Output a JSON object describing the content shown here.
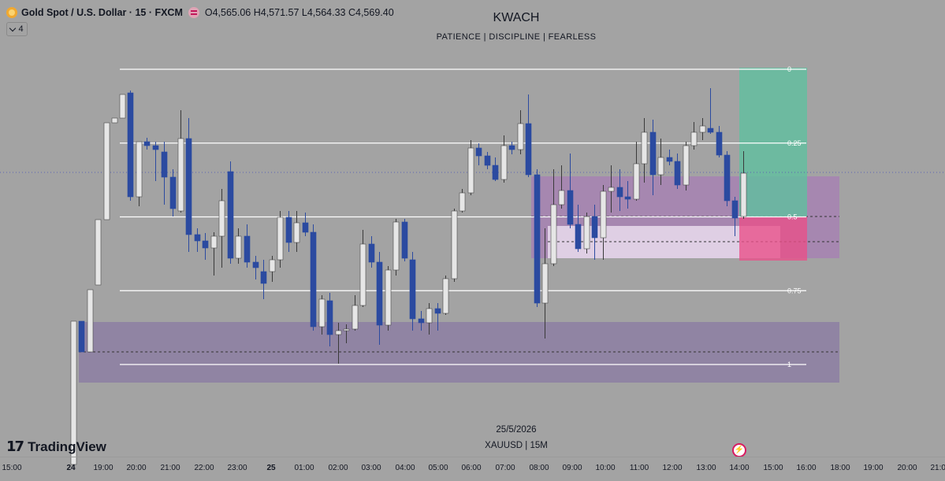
{
  "header": {
    "symbol": "Gold Spot / U.S. Dollar · 15 · FXCM",
    "ohlc": "O4,565.06 H4,571.57 L4,564.33 C4,569.40",
    "indicator_count": "4"
  },
  "chart_title": "KWACH",
  "chart_subtitle": "PATIENCE  |  DISCIPLINE  |  FEARLESS",
  "watermark": {
    "date": "25/5/2026",
    "symbol": "XAUUSD | 15M"
  },
  "brand": "TradingView",
  "colors": {
    "background": "#a3a3a3",
    "bull_candle": "#e6e6e6",
    "bear_candle": "#2b4aa0",
    "zone_purple": "#8a7aa3",
    "fib_line": "#ffffff",
    "target_green": "#5fbf9f",
    "stop_pink": "#e8508a"
  },
  "chart_data": {
    "type": "candlestick",
    "symbol": "XAUUSD",
    "timeframe": "15M",
    "fibonacci": {
      "levels": [
        "0",
        "0.25",
        "0.5",
        "0.75",
        "1"
      ],
      "values": [
        0,
        0.25,
        0.5,
        0.75,
        1
      ]
    },
    "x_ticks": [
      "15:00",
      "24",
      "19:00",
      "20:00",
      "21:00",
      "22:00",
      "23:00",
      "25",
      "01:00",
      "02:00",
      "03:00",
      "04:00",
      "05:00",
      "06:00",
      "07:00",
      "08:00",
      "09:00",
      "10:00",
      "11:00",
      "12:00",
      "13:00",
      "14:00",
      "15:00",
      "16:00",
      "18:00",
      "19:00",
      "20:00",
      "21:00"
    ],
    "candles_relative": [
      {
        "o": 0.73,
        "c": 0.92,
        "h": 0.7,
        "l": 1.34,
        "bull": true
      },
      {
        "o": 0.93,
        "c": 0.85,
        "h": 0.82,
        "l": 0.97,
        "bull": false
      },
      {
        "o": 0.97,
        "c": 0.75,
        "h": 0.68,
        "l": 0.99,
        "bull": true
      },
      {
        "o": 0.76,
        "c": 0.49,
        "h": 0.4,
        "l": 0.78,
        "bull": true
      },
      {
        "o": 0.5,
        "c": 0.21,
        "h": 0.18,
        "l": 0.52,
        "bull": true
      },
      {
        "o": 0.2,
        "c": 0.16,
        "h": 0.11,
        "l": 0.23,
        "bull": true
      },
      {
        "o": 0.17,
        "c": 0.09,
        "h": 0.0,
        "l": 0.2,
        "bull": true
      },
      {
        "o": 0.08,
        "c": 0.3,
        "h": 0.06,
        "l": 0.32,
        "bull": false
      },
      {
        "o": 0.26,
        "c": 0.26,
        "h": 0.2,
        "l": 0.33,
        "bull": false
      },
      {
        "o": 0.26,
        "c": 0.26,
        "h": 0.19,
        "l": 0.29,
        "bull": false
      }
    ]
  }
}
